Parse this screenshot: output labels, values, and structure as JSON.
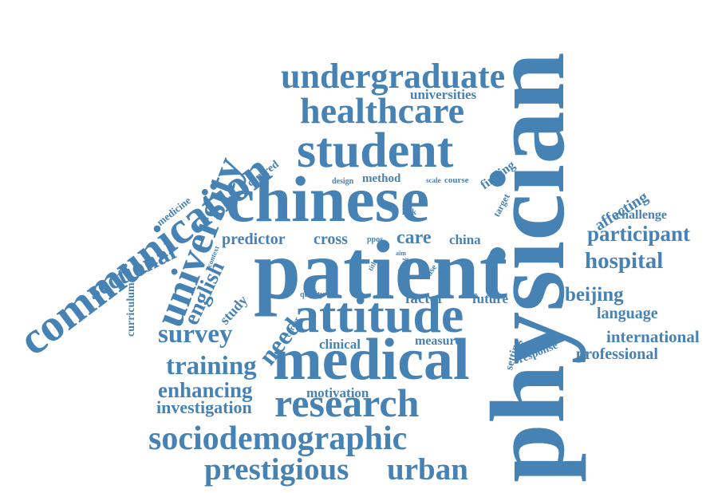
{
  "colors": {
    "word": "#4682b4",
    "background": "#ffffff"
  },
  "words": [
    "physician",
    "patient",
    "chinese",
    "medical",
    "attitude",
    "communication",
    "student",
    "research",
    "sociodemographic",
    "prestigious",
    "urban",
    "undergraduate",
    "healthcare",
    "university",
    "sectional",
    "participant",
    "hospital",
    "training",
    "survey",
    "enhancing",
    "investigation",
    "english",
    "need",
    "beijing",
    "language",
    "international",
    "professional",
    "predictor",
    "cross",
    "care",
    "china",
    "factor",
    "future",
    "clinical",
    "measure",
    "motivation",
    "study",
    "universities",
    "affecting",
    "challenge",
    "curriculum",
    "medicine",
    "centred",
    "method",
    "finding",
    "design",
    "scale",
    "course",
    "target",
    "lack",
    "ppos",
    "context",
    "title",
    "aim",
    "work",
    "case",
    "quality",
    "career",
    "response",
    "setting"
  ]
}
